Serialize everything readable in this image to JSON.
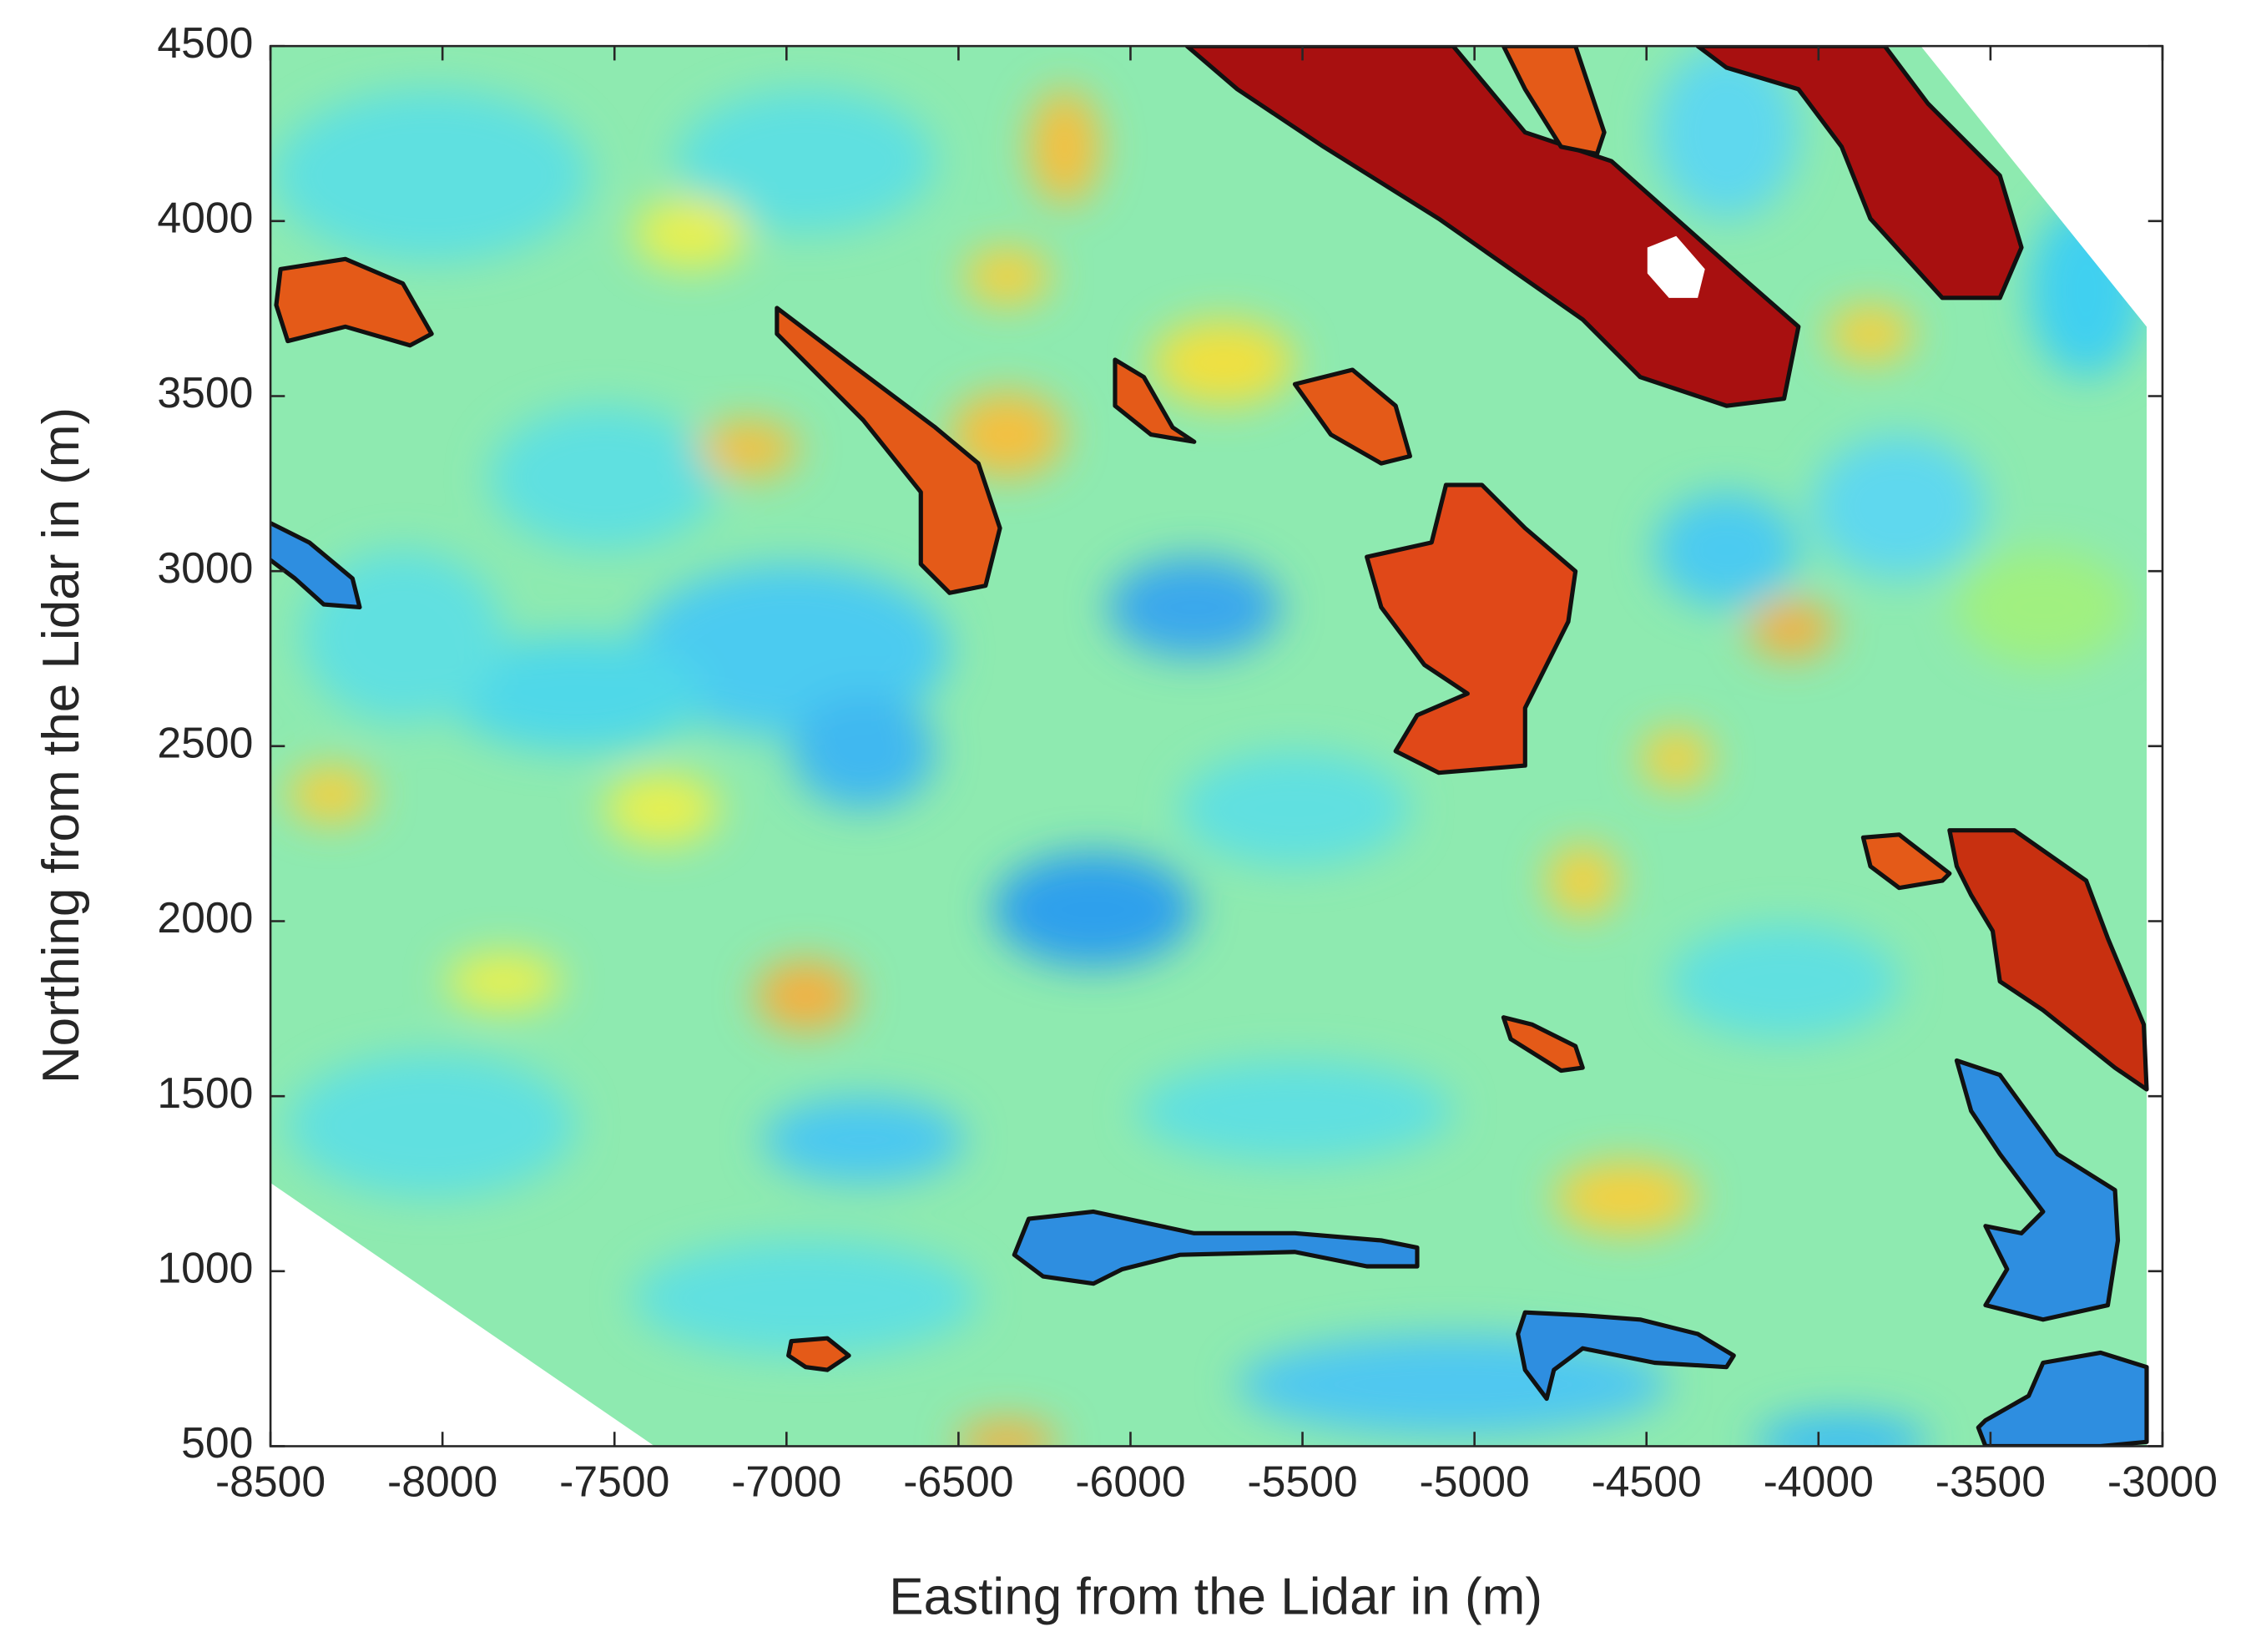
{
  "chart_data": {
    "type": "heatmap",
    "x_label": "Easting from the Lidar in (m)",
    "y_label": "Northing from the Lidar in (m)",
    "xlim": [
      -8500,
      -3000
    ],
    "ylim": [
      500,
      4500
    ],
    "xticks": [
      -8500,
      -8000,
      -7500,
      -7000,
      -6500,
      -6000,
      -5500,
      -5000,
      -4500,
      -4000,
      -3500,
      -3000
    ],
    "yticks": [
      500,
      1000,
      1500,
      2000,
      2500,
      3000,
      3500,
      4000,
      4500
    ]
  }
}
